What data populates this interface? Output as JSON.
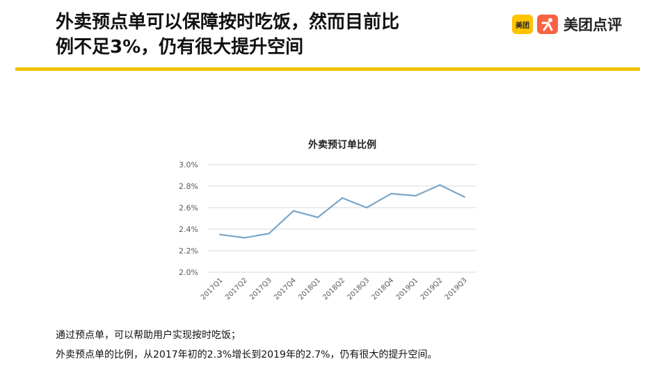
{
  "headline": {
    "line1": "外卖预点单可以保障按时吃饭，然而目前比",
    "line2": "例不足3%，仍有很大提升空间"
  },
  "brand": {
    "badge": "美团",
    "name": "美团点评",
    "yellow": "#ffc300",
    "orange": "#f86343"
  },
  "accent_rule_color": "#f2c200",
  "chart_data": {
    "type": "line",
    "title": "外卖预订单比例",
    "xlabel": "",
    "ylabel": "",
    "categories": [
      "2017Q1",
      "2017Q2",
      "2017Q3",
      "2017Q4",
      "2018Q1",
      "2018Q2",
      "2018Q3",
      "2018Q4",
      "2019Q1",
      "2019Q2",
      "2019Q3"
    ],
    "series": [
      {
        "values": [
          2.35,
          2.32,
          2.36,
          2.57,
          2.51,
          2.69,
          2.6,
          2.73,
          2.71,
          2.81,
          2.7
        ],
        "color": "#7aa6c8"
      }
    ],
    "ylim": [
      2.0,
      3.0
    ],
    "yticks": [
      "2.0%",
      "2.2%",
      "2.4%",
      "2.6%",
      "2.8%",
      "3.0%"
    ],
    "grid": true,
    "legend": "none"
  },
  "notes": {
    "line1": "通过预点单，可以帮助用户实现按时吃饭；",
    "line2": "外卖预点单的比例，从2017年初的2.3%增长到2019年的2.7%，仍有很大的提升空间。"
  }
}
